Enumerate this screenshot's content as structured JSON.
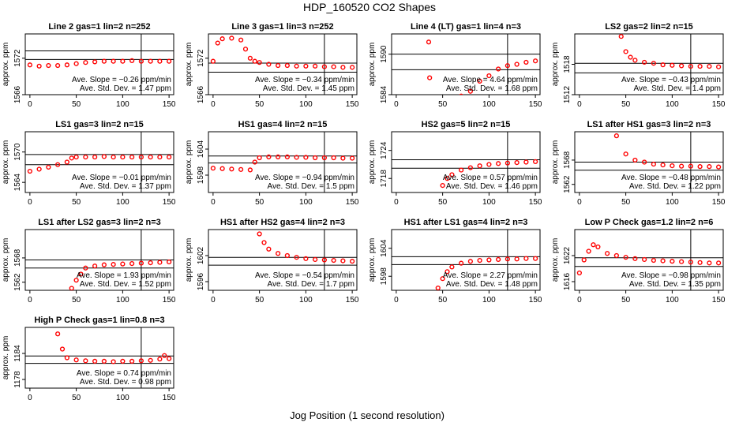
{
  "title": "HDP_160520  CO2 Shapes",
  "xlabel": "Jog Position (1 second resolution)",
  "chart_data": [
    {
      "type": "scatter",
      "title": "Line 2 gas=1 lin=2 n=252",
      "ylabel": "approx. ppm",
      "xlim": [
        -5,
        155
      ],
      "ylim": [
        1566,
        1576
      ],
      "xticks": [
        0,
        50,
        100,
        150
      ],
      "yticks": [
        1566,
        1572
      ],
      "hlines": [
        1573.2,
        1571.8
      ],
      "vline": 120,
      "slope": "Ave. Slope = −0.26  ppm/min",
      "stddev": "Ave. Std. Dev. = 1.47  ppm",
      "x": [
        0,
        10,
        20,
        30,
        40,
        50,
        60,
        70,
        80,
        90,
        100,
        110,
        120,
        130,
        140,
        150
      ],
      "y": [
        1570.9,
        1570.7,
        1570.8,
        1570.8,
        1570.9,
        1571.1,
        1571.3,
        1571.4,
        1571.5,
        1571.5,
        1571.5,
        1571.6,
        1571.5,
        1571.5,
        1571.5,
        1571.5
      ]
    },
    {
      "type": "scatter",
      "title": "Line 3 gas=1 lin=3 n=252",
      "ylabel": "approx. ppm",
      "xlim": [
        -5,
        155
      ],
      "ylim": [
        1566,
        1576
      ],
      "xticks": [
        0,
        50,
        100,
        150
      ],
      "yticks": [
        1566,
        1572
      ],
      "hlines": [
        1571.2,
        1569.7
      ],
      "vline": 120,
      "slope": "Ave. Slope = −0.34  ppm/min",
      "stddev": "Ave. Std. Dev. = 1.45  ppm",
      "x": [
        0,
        5,
        10,
        20,
        30,
        35,
        40,
        45,
        50,
        60,
        70,
        80,
        90,
        100,
        110,
        120,
        130,
        140,
        150
      ],
      "y": [
        1571.5,
        1574.5,
        1575.2,
        1575.3,
        1575.0,
        1573.5,
        1572.0,
        1571.5,
        1571.3,
        1571.0,
        1570.8,
        1570.8,
        1570.7,
        1570.7,
        1570.7,
        1570.6,
        1570.6,
        1570.5,
        1570.5
      ]
    },
    {
      "type": "scatter",
      "title": "Line 4 (LT) gas=1 lin=4 n=3",
      "ylabel": "approx. ppm",
      "xlim": [
        -5,
        155
      ],
      "ylim": [
        1584,
        1593
      ],
      "xticks": [
        0,
        50,
        100,
        150
      ],
      "yticks": [
        1584,
        1590
      ],
      "hlines": [
        1590,
        1587.7
      ],
      "vline": 120,
      "slope": "Ave. Slope = 4.64  ppm/min",
      "stddev": "Ave. Std. Dev. = 1.68  ppm",
      "x": [
        35,
        36,
        70,
        80,
        90,
        100,
        110,
        120,
        130,
        140,
        150
      ],
      "y": [
        1591.8,
        1586.5,
        1583.8,
        1584.5,
        1586.0,
        1586.8,
        1587.8,
        1588.3,
        1588.5,
        1588.8,
        1589.0
      ]
    },
    {
      "type": "scatter",
      "title": "LS2 gas=2 lin=2 n=15",
      "ylabel": "approx. ppm",
      "xlim": [
        -5,
        155
      ],
      "ylim": [
        1512,
        1524
      ],
      "xticks": [
        0,
        50,
        100,
        150
      ],
      "yticks": [
        1512,
        1518
      ],
      "hlines": [
        1518.2,
        1516.3
      ],
      "vline": 120,
      "slope": "Ave. Slope = −0.43  ppm/min",
      "stddev": "Ave. Std. Dev. = 1.4  ppm",
      "x": [
        45,
        50,
        55,
        60,
        70,
        80,
        90,
        100,
        110,
        120,
        130,
        140,
        150
      ],
      "y": [
        1523.5,
        1520.5,
        1519.4,
        1518.8,
        1518.4,
        1518.2,
        1517.9,
        1517.8,
        1517.7,
        1517.6,
        1517.6,
        1517.6,
        1517.5
      ]
    },
    {
      "type": "scatter",
      "title": "LS1 gas=3 lin=2 n=15",
      "ylabel": "approx. ppm",
      "xlim": [
        -5,
        155
      ],
      "ylim": [
        1562,
        1574
      ],
      "xticks": [
        0,
        50,
        100,
        150
      ],
      "yticks": [
        1564,
        1570
      ],
      "hlines": [
        1569.5,
        1567.5
      ],
      "vline": 120,
      "slope": "Ave. Slope = −0.01  ppm/min",
      "stddev": "Ave. Std. Dev. = 1.37  ppm",
      "x": [
        0,
        10,
        20,
        30,
        40,
        45,
        50,
        60,
        70,
        80,
        90,
        100,
        110,
        120,
        130,
        140,
        150
      ],
      "y": [
        1566.2,
        1566.6,
        1567.0,
        1567.5,
        1568.0,
        1568.8,
        1569.0,
        1569.0,
        1569.0,
        1569.1,
        1569.0,
        1569.0,
        1569.0,
        1569.0,
        1569.0,
        1569.0,
        1569.0
      ]
    },
    {
      "type": "scatter",
      "title": "HS1 gas=4 lin=2 n=15",
      "ylabel": "approx. ppm",
      "xlim": [
        -5,
        155
      ],
      "ylim": [
        1594,
        1608
      ],
      "xticks": [
        0,
        50,
        100,
        150
      ],
      "yticks": [
        1598,
        1604
      ],
      "hlines": [
        1602.4,
        1600.8
      ],
      "vline": 120,
      "slope": "Ave. Slope = −0.94  ppm/min",
      "stddev": "Ave. Std. Dev. = 1.5  ppm",
      "x": [
        0,
        10,
        20,
        30,
        40,
        45,
        50,
        60,
        70,
        80,
        90,
        100,
        110,
        120,
        130,
        140,
        150
      ],
      "y": [
        1599.6,
        1599.5,
        1599.4,
        1599.3,
        1599.2,
        1601.0,
        1602.0,
        1602.2,
        1602.2,
        1602.2,
        1602.1,
        1602.1,
        1602.0,
        1602.0,
        1602.0,
        1601.9,
        1601.9
      ]
    },
    {
      "type": "scatter",
      "title": "HS2 gas=5 lin=2 n=15",
      "ylabel": "approx. ppm",
      "xlim": [
        -5,
        155
      ],
      "ylim": [
        1715,
        1728
      ],
      "xticks": [
        0,
        50,
        100,
        150
      ],
      "yticks": [
        1718,
        1724
      ],
      "hlines": [
        1722,
        1720.2
      ],
      "vline": 120,
      "slope": "Ave. Slope = 0.57  ppm/min",
      "stddev": "Ave. Std. Dev. = 1.46  ppm",
      "x": [
        50,
        55,
        60,
        70,
        80,
        90,
        100,
        110,
        120,
        130,
        140,
        150
      ],
      "y": [
        1716.5,
        1718.0,
        1718.8,
        1719.8,
        1720.3,
        1720.7,
        1721.0,
        1721.2,
        1721.3,
        1721.4,
        1721.5,
        1721.6
      ]
    },
    {
      "type": "scatter",
      "title": "LS1 after HS1 gas=3 lin=2 n=3",
      "ylabel": "approx. ppm",
      "xlim": [
        -5,
        155
      ],
      "ylim": [
        1560,
        1575
      ],
      "xticks": [
        0,
        50,
        100,
        150
      ],
      "yticks": [
        1562,
        1568
      ],
      "hlines": [
        1567.5,
        1565.5
      ],
      "vline": 120,
      "slope": "Ave. Slope = −0.48  ppm/min",
      "stddev": "Ave. Std. Dev. = 1.22  ppm",
      "x": [
        40,
        50,
        60,
        70,
        80,
        90,
        100,
        110,
        120,
        130,
        140,
        150
      ],
      "y": [
        1574.0,
        1569.5,
        1568.0,
        1567.5,
        1567.0,
        1566.8,
        1566.6,
        1566.5,
        1566.5,
        1566.4,
        1566.4,
        1566.3
      ]
    },
    {
      "type": "scatter",
      "title": "LS1 after LS2 gas=3 lin=2 n=3",
      "ylabel": "approx. ppm",
      "xlim": [
        -5,
        155
      ],
      "ylim": [
        1560,
        1575
      ],
      "xticks": [
        0,
        50,
        100,
        150
      ],
      "yticks": [
        1562,
        1568
      ],
      "hlines": [
        1567.5,
        1565.5
      ],
      "vline": 120,
      "slope": "Ave. Slope = 1.93  ppm/min",
      "stddev": "Ave. Std. Dev. = 1.52  ppm",
      "x": [
        45,
        50,
        55,
        60,
        70,
        80,
        90,
        100,
        110,
        120,
        130,
        140,
        150
      ],
      "y": [
        1560.5,
        1562.5,
        1564.0,
        1565.5,
        1566.0,
        1566.3,
        1566.4,
        1566.5,
        1566.6,
        1566.7,
        1566.8,
        1566.9,
        1567.0
      ]
    },
    {
      "type": "scatter",
      "title": "HS1 after HS2 gas=4 lin=2 n=3",
      "ylabel": "approx. ppm",
      "xlim": [
        -5,
        155
      ],
      "ylim": [
        1594,
        1608
      ],
      "xticks": [
        0,
        50,
        100,
        150
      ],
      "yticks": [
        1596,
        1602
      ],
      "hlines": [
        1601.6,
        1599.8
      ],
      "vline": 120,
      "slope": "Ave. Slope = −0.54  ppm/min",
      "stddev": "Ave. Std. Dev. = 1.7  ppm",
      "x": [
        50,
        55,
        60,
        70,
        80,
        90,
        100,
        110,
        120,
        130,
        140,
        150
      ],
      "y": [
        1607.0,
        1605.0,
        1603.5,
        1602.5,
        1602.0,
        1601.6,
        1601.3,
        1601.1,
        1601.0,
        1600.9,
        1600.8,
        1600.7
      ]
    },
    {
      "type": "scatter",
      "title": "HS1 after LS1 gas=4 lin=2 n=3",
      "ylabel": "approx. ppm",
      "xlim": [
        -5,
        155
      ],
      "ylim": [
        1595,
        1608
      ],
      "xticks": [
        0,
        50,
        100,
        150
      ],
      "yticks": [
        1598,
        1604
      ],
      "hlines": [
        1602.2,
        1600.5
      ],
      "vline": 120,
      "slope": "Ave. Slope = 2.27  ppm/min",
      "stddev": "Ave. Std. Dev. = 1.48  ppm",
      "x": [
        45,
        50,
        55,
        60,
        70,
        80,
        90,
        100,
        110,
        120,
        130,
        140,
        150
      ],
      "y": [
        1595.5,
        1597.5,
        1599.0,
        1600.0,
        1600.8,
        1601.2,
        1601.4,
        1601.5,
        1601.6,
        1601.7,
        1601.7,
        1601.8,
        1601.8
      ]
    },
    {
      "type": "scatter",
      "title": "Low P Check gas=1.2 lin=2 n=6",
      "ylabel": "approx. ppm",
      "xlim": [
        -5,
        155
      ],
      "ylim": [
        1614,
        1628
      ],
      "xticks": [
        0,
        50,
        100,
        150
      ],
      "yticks": [
        1616,
        1622
      ],
      "hlines": [
        1621.5,
        1619.5
      ],
      "vline": 120,
      "slope": "Ave. Slope = −0.98  ppm/min",
      "stddev": "Ave. Std. Dev. = 1.35  ppm",
      "x": [
        0,
        5,
        10,
        15,
        20,
        30,
        40,
        50,
        60,
        70,
        80,
        90,
        100,
        110,
        120,
        130,
        140,
        150
      ],
      "y": [
        1618.0,
        1621.0,
        1623.0,
        1624.5,
        1624.0,
        1622.5,
        1622.0,
        1621.6,
        1621.3,
        1621.1,
        1620.9,
        1620.8,
        1620.7,
        1620.6,
        1620.5,
        1620.4,
        1620.3,
        1620.3
      ]
    },
    {
      "type": "scatter",
      "title": "High P Check gas=1 lin=0.8 n=3",
      "ylabel": "approx. ppm",
      "xlim": [
        -5,
        155
      ],
      "ylim": [
        1176,
        1190
      ],
      "xticks": [
        0,
        50,
        100,
        150
      ],
      "yticks": [
        1178,
        1184
      ],
      "hlines": [
        1183.4,
        1181.7
      ],
      "vline": 120,
      "slope": "Ave. Slope = 0.74  ppm/min",
      "stddev": "Ave. Std. Dev. = 0.98  ppm",
      "x": [
        30,
        35,
        40,
        50,
        60,
        70,
        80,
        90,
        100,
        110,
        120,
        130,
        140,
        145,
        150
      ],
      "y": [
        1188.5,
        1185.0,
        1183.0,
        1182.5,
        1182.3,
        1182.2,
        1182.2,
        1182.1,
        1182.2,
        1182.2,
        1182.3,
        1182.4,
        1182.7,
        1183.5,
        1182.8
      ]
    }
  ],
  "colors": {
    "points": "#ff0000",
    "axes": "#000000",
    "background": "#ffffff"
  }
}
